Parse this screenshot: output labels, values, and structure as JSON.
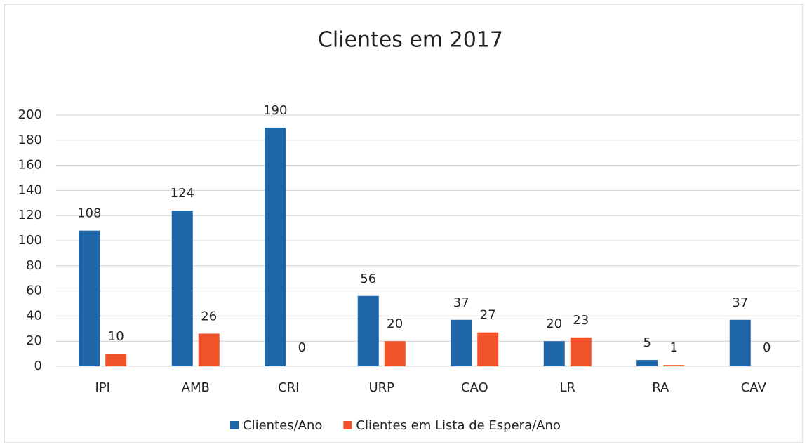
{
  "chart_data": {
    "type": "bar",
    "title": "Clientes em 2017",
    "categories": [
      "IPI",
      "AMB",
      "CRI",
      "URP",
      "CAO",
      "LR",
      "RA",
      "CAV"
    ],
    "series": [
      {
        "name": "Clientes/Ano",
        "color": "#1f66a8",
        "values": [
          108,
          124,
          190,
          56,
          37,
          20,
          5,
          37
        ]
      },
      {
        "name": "Clientes em Lista de Espera/Ano",
        "color": "#f0522a",
        "values": [
          10,
          26,
          0,
          20,
          27,
          23,
          1,
          0
        ]
      }
    ],
    "ylim": [
      0,
      200
    ],
    "yticks": [
      0,
      20,
      40,
      60,
      80,
      100,
      120,
      140,
      160,
      180,
      200
    ],
    "grid": true,
    "legend": "bottom"
  }
}
